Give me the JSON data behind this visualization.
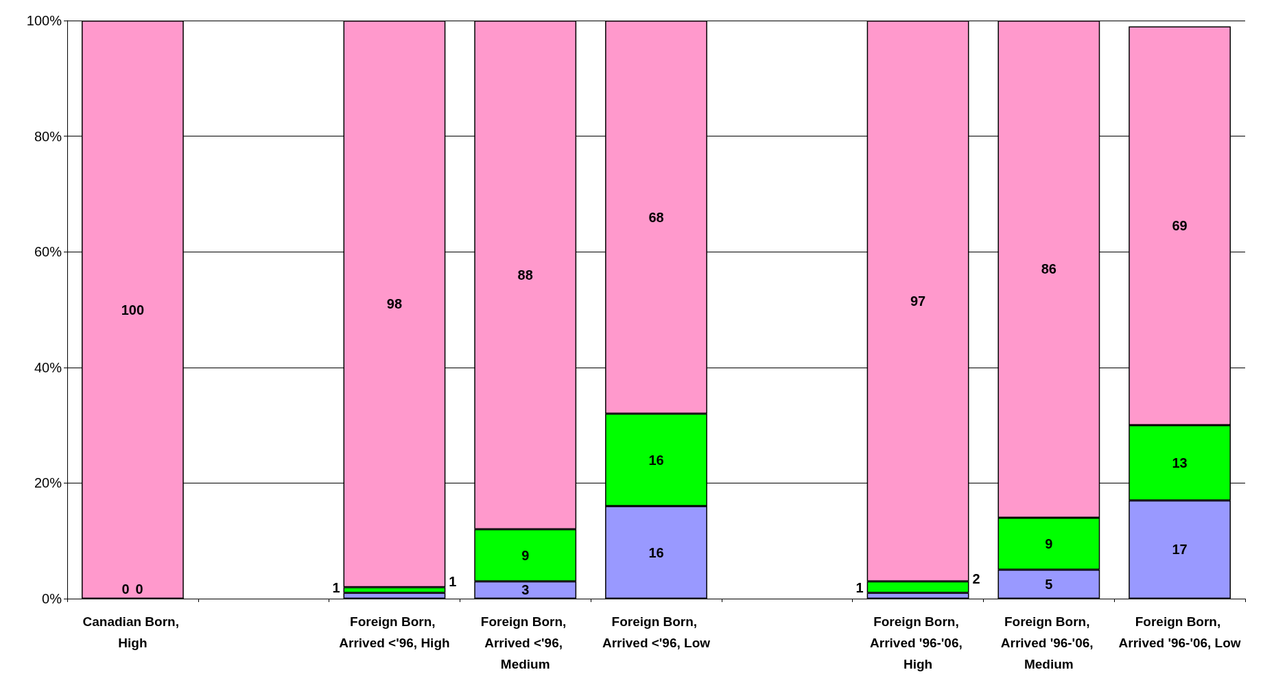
{
  "chart_data": {
    "type": "bar",
    "stacked": true,
    "categories": [
      "Canadian Born, High",
      null,
      "Foreign Born, Arrived <'96, High",
      "Foreign Born, Arrived <'96, Medium",
      "Foreign Born, Arrived <'96, Low",
      null,
      "Foreign Born, Arrived '96-'06, High",
      "Foreign Born, Arrived '96-'06, Medium",
      "Foreign Born, Arrived '96-'06, Low"
    ],
    "series": [
      {
        "color": "#9999ff",
        "values": [
          0,
          null,
          1,
          3,
          16,
          null,
          1,
          5,
          17
        ],
        "value_labels": [
          null,
          null,
          "1",
          "3",
          "16",
          null,
          "1",
          "5",
          "17"
        ]
      },
      {
        "color": "#00ff00",
        "values": [
          0,
          null,
          1,
          9,
          16,
          null,
          2,
          9,
          13
        ],
        "value_labels": [
          null,
          null,
          "1",
          "9",
          "16",
          null,
          "2",
          "9",
          "13"
        ]
      },
      {
        "color": "#ff99cc",
        "values": [
          100,
          null,
          98,
          88,
          68,
          null,
          97,
          86,
          69
        ],
        "value_labels": [
          "100",
          null,
          "98",
          "88",
          "68",
          null,
          "97",
          "86",
          "69"
        ]
      }
    ],
    "annotations": [
      {
        "text": "0",
        "x": "Canadian Born, High",
        "y": 0
      },
      {
        "text": "0",
        "x": "Canadian Born, High",
        "y": 0
      }
    ],
    "ylim": [
      0,
      100
    ],
    "yticks": [
      {
        "value": 0,
        "label": "0%"
      },
      {
        "value": 20,
        "label": "20%"
      },
      {
        "value": 40,
        "label": "40%"
      },
      {
        "value": 60,
        "label": "60%"
      },
      {
        "value": 80,
        "label": "80%"
      },
      {
        "value": 100,
        "label": "100%"
      }
    ],
    "grid": "y"
  }
}
